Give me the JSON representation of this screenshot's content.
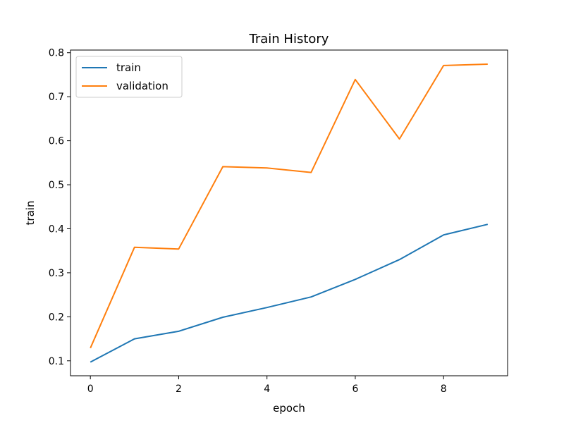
{
  "chart_data": {
    "type": "line",
    "title": "Train History",
    "xlabel": "epoch",
    "ylabel": "train",
    "x": [
      0,
      1,
      2,
      3,
      4,
      5,
      6,
      7,
      8,
      9
    ],
    "xlim": [
      -0.45,
      9.45
    ],
    "ylim": [
      0.066,
      0.806
    ],
    "xticks": [
      0,
      2,
      4,
      6,
      8
    ],
    "xtick_labels": [
      "0",
      "2",
      "4",
      "6",
      "8"
    ],
    "yticks": [
      0.1,
      0.2,
      0.3,
      0.4,
      0.5,
      0.6,
      0.7,
      0.8
    ],
    "ytick_labels": [
      "0.1",
      "0.2",
      "0.3",
      "0.4",
      "0.5",
      "0.6",
      "0.7",
      "0.8"
    ],
    "grid": false,
    "legend_position": "top-left",
    "series": [
      {
        "name": "train",
        "color": "#1f77b4",
        "values": [
          0.097,
          0.15,
          0.167,
          0.199,
          0.221,
          0.245,
          0.285,
          0.33,
          0.386,
          0.41
        ]
      },
      {
        "name": "validation",
        "color": "#ff7f0e",
        "values": [
          0.129,
          0.358,
          0.354,
          0.541,
          0.538,
          0.528,
          0.739,
          0.604,
          0.771,
          0.774
        ]
      }
    ]
  }
}
